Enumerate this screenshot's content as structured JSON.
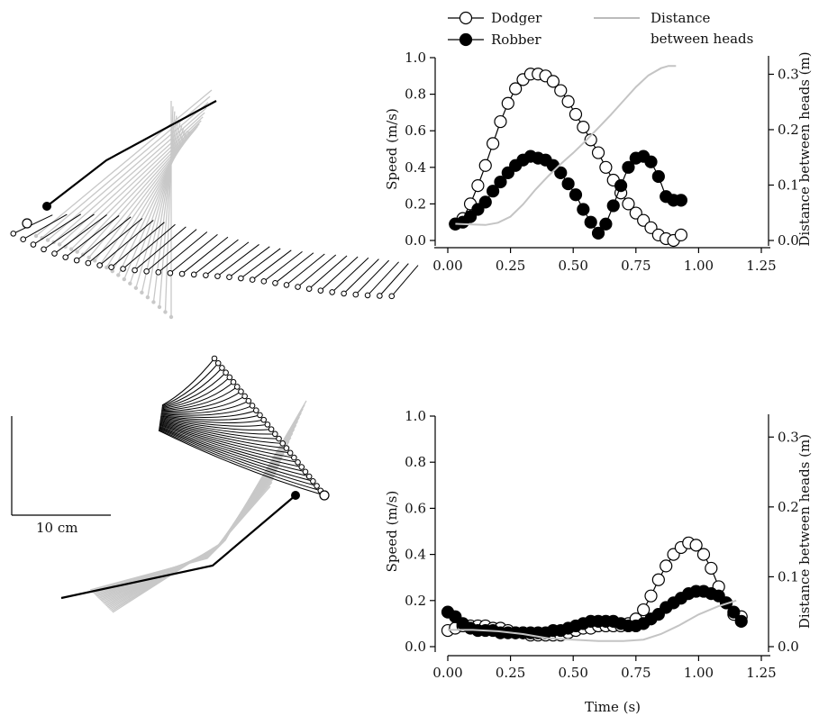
{
  "legend": {
    "dodger": "Dodger",
    "robber": "Robber",
    "distance_line1": "Distance",
    "distance_line2": "between heads"
  },
  "scale_bar": {
    "label": "10 cm"
  },
  "shared_xlabel": "Time (s)",
  "chart_data": [
    {
      "type": "line",
      "ylabel": "Speed (m/s)",
      "y2label": "Distance between heads (m)",
      "xlim": [
        0,
        1.25
      ],
      "ylim": [
        0,
        1.0
      ],
      "y2lim": [
        0,
        0.33
      ],
      "xticks": [
        "0.00",
        "0.25",
        "0.50",
        "0.75",
        "1.00",
        "1.25"
      ],
      "yticks": [
        "0.0",
        "0.2",
        "0.4",
        "0.6",
        "0.8",
        "1.0"
      ],
      "y2ticks": [
        "0.0",
        "0.1",
        "0.2",
        "0.3"
      ],
      "series": [
        {
          "name": "Dodger",
          "x": [
            0.03,
            0.06,
            0.09,
            0.12,
            0.15,
            0.18,
            0.21,
            0.24,
            0.27,
            0.3,
            0.33,
            0.36,
            0.39,
            0.42,
            0.45,
            0.48,
            0.51,
            0.54,
            0.57,
            0.6,
            0.63,
            0.66,
            0.69,
            0.72,
            0.75,
            0.78,
            0.81,
            0.84,
            0.87,
            0.9,
            0.93
          ],
          "y": [
            0.09,
            0.12,
            0.2,
            0.3,
            0.41,
            0.53,
            0.65,
            0.75,
            0.83,
            0.88,
            0.91,
            0.91,
            0.9,
            0.87,
            0.82,
            0.76,
            0.69,
            0.62,
            0.55,
            0.48,
            0.4,
            0.33,
            0.26,
            0.2,
            0.15,
            0.11,
            0.07,
            0.03,
            0.01,
            0.0,
            0.03
          ]
        },
        {
          "name": "Robber",
          "x": [
            0.03,
            0.06,
            0.09,
            0.12,
            0.15,
            0.18,
            0.21,
            0.24,
            0.27,
            0.3,
            0.33,
            0.36,
            0.39,
            0.42,
            0.45,
            0.48,
            0.51,
            0.54,
            0.57,
            0.6,
            0.63,
            0.66,
            0.69,
            0.72,
            0.75,
            0.78,
            0.81,
            0.84,
            0.87,
            0.9,
            0.93
          ],
          "y": [
            0.09,
            0.1,
            0.13,
            0.17,
            0.21,
            0.27,
            0.32,
            0.37,
            0.41,
            0.44,
            0.46,
            0.45,
            0.44,
            0.41,
            0.37,
            0.31,
            0.25,
            0.17,
            0.1,
            0.04,
            0.09,
            0.19,
            0.3,
            0.4,
            0.45,
            0.46,
            0.43,
            0.35,
            0.24,
            0.22,
            0.22
          ]
        },
        {
          "name": "Distance between heads",
          "axis": "right",
          "x": [
            0.03,
            0.1,
            0.15,
            0.2,
            0.25,
            0.3,
            0.35,
            0.4,
            0.45,
            0.5,
            0.55,
            0.6,
            0.65,
            0.7,
            0.75,
            0.8,
            0.85,
            0.88,
            0.91
          ],
          "y": [
            0.03,
            0.029,
            0.028,
            0.032,
            0.043,
            0.065,
            0.092,
            0.116,
            0.138,
            0.158,
            0.18,
            0.203,
            0.227,
            0.252,
            0.277,
            0.298,
            0.311,
            0.315,
            0.315
          ]
        }
      ]
    },
    {
      "type": "line",
      "ylabel": "Speed (m/s)",
      "y2label": "Distance between heads (m)",
      "xlabel": "Time (s)",
      "xlim": [
        0,
        1.25
      ],
      "ylim": [
        0,
        1.0
      ],
      "y2lim": [
        0,
        0.33
      ],
      "xticks": [
        "0.00",
        "0.25",
        "0.50",
        "0.75",
        "1.00",
        "1.25"
      ],
      "yticks": [
        "0.0",
        "0.2",
        "0.4",
        "0.6",
        "0.8",
        "1.0"
      ],
      "y2ticks": [
        "0.0",
        "0.1",
        "0.2",
        "0.3"
      ],
      "series": [
        {
          "name": "Dodger",
          "x": [
            0.0,
            0.03,
            0.06,
            0.09,
            0.12,
            0.15,
            0.18,
            0.21,
            0.24,
            0.27,
            0.3,
            0.33,
            0.36,
            0.39,
            0.42,
            0.45,
            0.48,
            0.51,
            0.54,
            0.57,
            0.6,
            0.63,
            0.66,
            0.69,
            0.72,
            0.75,
            0.78,
            0.81,
            0.84,
            0.87,
            0.9,
            0.93,
            0.96,
            0.99,
            1.02,
            1.05,
            1.08,
            1.11,
            1.14,
            1.17
          ],
          "y": [
            0.07,
            0.08,
            0.09,
            0.09,
            0.09,
            0.09,
            0.08,
            0.08,
            0.07,
            0.06,
            0.06,
            0.05,
            0.05,
            0.05,
            0.05,
            0.05,
            0.06,
            0.07,
            0.08,
            0.08,
            0.09,
            0.09,
            0.09,
            0.09,
            0.1,
            0.12,
            0.16,
            0.22,
            0.29,
            0.35,
            0.4,
            0.43,
            0.45,
            0.44,
            0.4,
            0.34,
            0.26,
            0.19,
            0.14,
            0.13
          ]
        },
        {
          "name": "Robber",
          "x": [
            0.0,
            0.03,
            0.06,
            0.09,
            0.12,
            0.15,
            0.18,
            0.21,
            0.24,
            0.27,
            0.3,
            0.33,
            0.36,
            0.39,
            0.42,
            0.45,
            0.48,
            0.51,
            0.54,
            0.57,
            0.6,
            0.63,
            0.66,
            0.69,
            0.72,
            0.75,
            0.78,
            0.81,
            0.84,
            0.87,
            0.9,
            0.93,
            0.96,
            0.99,
            1.02,
            1.05,
            1.08,
            1.11,
            1.14,
            1.17
          ],
          "y": [
            0.15,
            0.13,
            0.1,
            0.08,
            0.07,
            0.07,
            0.07,
            0.06,
            0.06,
            0.06,
            0.06,
            0.06,
            0.06,
            0.06,
            0.07,
            0.07,
            0.08,
            0.09,
            0.1,
            0.11,
            0.11,
            0.11,
            0.11,
            0.1,
            0.09,
            0.09,
            0.1,
            0.12,
            0.14,
            0.17,
            0.19,
            0.21,
            0.23,
            0.24,
            0.24,
            0.23,
            0.22,
            0.19,
            0.15,
            0.11
          ]
        },
        {
          "name": "Distance between heads",
          "axis": "right",
          "x": [
            0.0,
            0.1,
            0.2,
            0.3,
            0.4,
            0.5,
            0.55,
            0.6,
            0.7,
            0.78,
            0.85,
            0.92,
            1.0,
            1.08,
            1.15
          ],
          "y": [
            0.024,
            0.024,
            0.022,
            0.018,
            0.012,
            0.01,
            0.009,
            0.008,
            0.008,
            0.01,
            0.018,
            0.03,
            0.046,
            0.058,
            0.066
          ]
        }
      ]
    }
  ]
}
